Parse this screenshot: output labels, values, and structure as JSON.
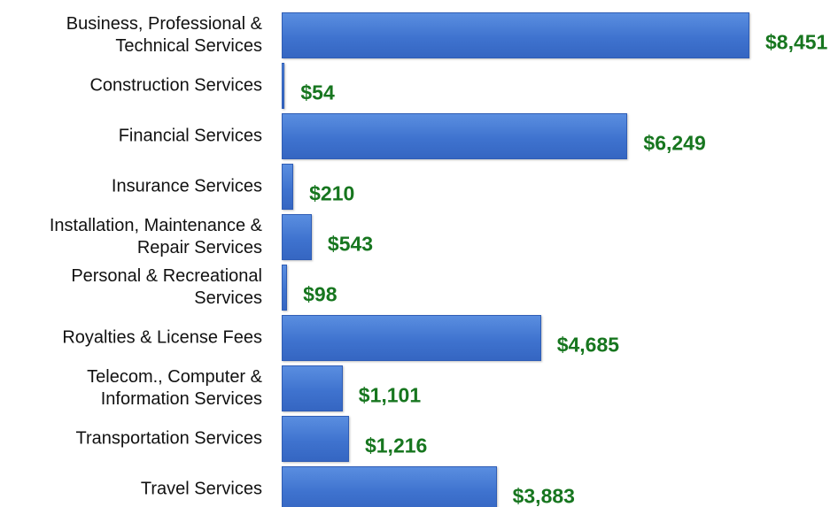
{
  "chart_data": {
    "type": "barh",
    "categories": [
      "Business, Professional &\nTechnical Services",
      "Construction Services",
      "Financial Services",
      "Insurance Services",
      "Installation, Maintenance &\nRepair Services",
      "Personal & Recreational\nServices",
      "Royalties & License Fees",
      "Telecom., Computer &\nInformation Services",
      "Transportation Services",
      "Travel Services"
    ],
    "values": [
      8451,
      54,
      6249,
      210,
      543,
      98,
      4685,
      1101,
      1216,
      3883
    ],
    "value_labels": [
      "$8,451",
      "$54",
      "$6,249",
      "$210",
      "$543",
      "$98",
      "$4,685",
      "$1,101",
      "$1,216",
      "$3,883"
    ],
    "color": "#3f73cf",
    "label_color": "#17761f"
  }
}
